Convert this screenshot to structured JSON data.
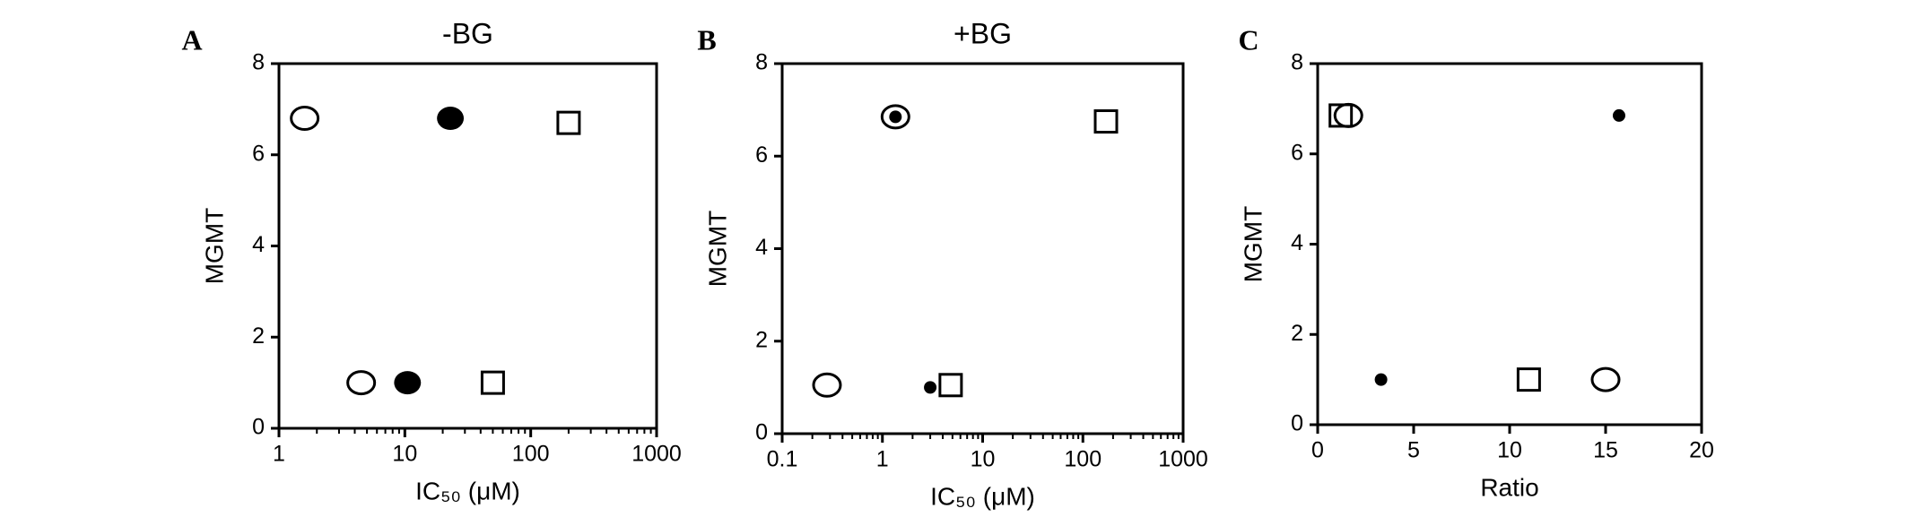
{
  "chart_data": [
    {
      "type": "scatter",
      "panel": "A",
      "title": "-BG",
      "xlabel": "IC₅₀ (μM)",
      "ylabel": "MGMT",
      "xscale": "log",
      "xlim": [
        1,
        1000
      ],
      "xticks": [
        1,
        10,
        100,
        1000
      ],
      "ylim": [
        0,
        8
      ],
      "yticks": [
        0,
        2,
        4,
        6,
        8
      ],
      "series": [
        {
          "marker": "circle-open",
          "size": "large",
          "color": "#000000",
          "x": [
            1.6,
            4.5
          ],
          "values": [
            6.8,
            1.0
          ]
        },
        {
          "marker": "circle-filled",
          "size": "large",
          "color": "#000000",
          "x": [
            23,
            10.5
          ],
          "values": [
            6.8,
            1.0
          ]
        },
        {
          "marker": "square-open",
          "size": "large",
          "color": "#000000",
          "x": [
            200,
            50
          ],
          "values": [
            6.7,
            1.0
          ]
        }
      ]
    },
    {
      "type": "scatter",
      "panel": "B",
      "title": "+BG",
      "xlabel": "IC₅₀ (μM)",
      "ylabel": "MGMT",
      "xscale": "log",
      "xlim": [
        0.1,
        1000
      ],
      "xticks": [
        0.1,
        1,
        10,
        100,
        1000
      ],
      "ylim": [
        0,
        8
      ],
      "yticks": [
        0,
        2,
        4,
        6,
        8
      ],
      "series": [
        {
          "marker": "circle-open",
          "size": "large",
          "color": "#000000",
          "x": [
            1.35,
            0.28
          ],
          "values": [
            6.85,
            1.05
          ]
        },
        {
          "marker": "circle-filled",
          "size": "small",
          "color": "#000000",
          "x": [
            1.35,
            3.0
          ],
          "values": [
            6.85,
            1.0
          ]
        },
        {
          "marker": "square-open",
          "size": "large",
          "color": "#000000",
          "x": [
            170,
            4.8
          ],
          "values": [
            6.75,
            1.05
          ]
        }
      ]
    },
    {
      "type": "scatter",
      "panel": "C",
      "xlabel": "Ratio",
      "ylabel": "MGMT",
      "xscale": "linear",
      "xlim": [
        0,
        20
      ],
      "xticks": [
        0,
        5,
        10,
        15,
        20
      ],
      "ylim": [
        0,
        8
      ],
      "yticks": [
        0,
        2,
        4,
        6,
        8
      ],
      "series": [
        {
          "marker": "circle-open",
          "size": "large",
          "color": "#000000",
          "x": [
            1.6,
            15
          ],
          "values": [
            6.85,
            1.0
          ]
        },
        {
          "marker": "circle-filled",
          "size": "small",
          "color": "#000000",
          "x": [
            15.7,
            3.3
          ],
          "values": [
            6.85,
            1.0
          ]
        },
        {
          "marker": "square-open",
          "size": "large",
          "color": "#000000",
          "x": [
            1.2,
            11
          ],
          "values": [
            6.85,
            1.0
          ]
        }
      ]
    }
  ]
}
